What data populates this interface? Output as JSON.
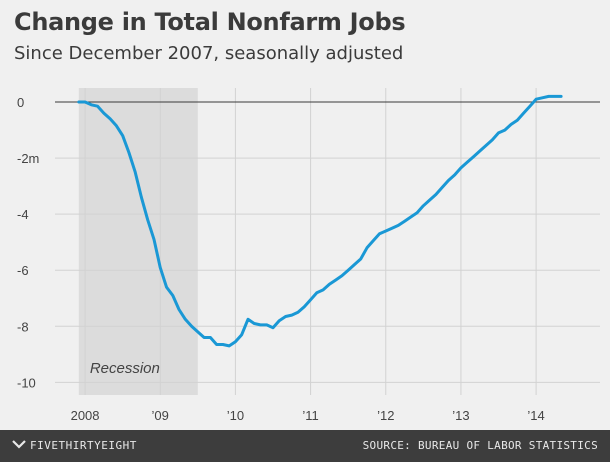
{
  "title": "Change in Total Nonfarm Jobs",
  "subtitle": "Since December 2007, seasonally adjusted",
  "footer": {
    "brand": "FIVETHIRTYEIGHT",
    "source": "SOURCE: BUREAU OF LABOR STATISTICS",
    "text_color": "#e8e8e8",
    "background": "#3d3d3d"
  },
  "chart_data": {
    "type": "line",
    "title": "Change in Total Nonfarm Jobs",
    "subtitle": "Since December 2007, seasonally adjusted",
    "xlabel": "",
    "ylabel": "",
    "x_ticks": [
      {
        "value": 2008,
        "label": "2008"
      },
      {
        "value": 2009,
        "label": "’09"
      },
      {
        "value": 2010,
        "label": "’10"
      },
      {
        "value": 2011,
        "label": "’11"
      },
      {
        "value": 2012,
        "label": "’12"
      },
      {
        "value": 2013,
        "label": "’13"
      },
      {
        "value": 2014,
        "label": "’14"
      }
    ],
    "y_ticks": [
      {
        "value": 0,
        "label": "0"
      },
      {
        "value": -2,
        "label": "-2m"
      },
      {
        "value": -4,
        "label": "-4"
      },
      {
        "value": -6,
        "label": "-6"
      },
      {
        "value": -8,
        "label": "-8"
      },
      {
        "value": -10,
        "label": "-10"
      }
    ],
    "xlim": [
      2007.6,
      2014.85
    ],
    "ylim": [
      -10.45,
      0.5
    ],
    "grid": true,
    "line_color": "#1a98d5",
    "shaded_region": {
      "label": "Recession",
      "x_start": 2007.917,
      "x_end": 2009.5,
      "color": "#dcdcdc"
    },
    "series": [
      {
        "name": "",
        "x": [
          2007.917,
          2008.0,
          2008.083,
          2008.167,
          2008.25,
          2008.333,
          2008.417,
          2008.5,
          2008.583,
          2008.667,
          2008.75,
          2008.833,
          2008.917,
          2009.0,
          2009.083,
          2009.167,
          2009.25,
          2009.333,
          2009.417,
          2009.5,
          2009.583,
          2009.667,
          2009.75,
          2009.833,
          2009.917,
          2010.0,
          2010.083,
          2010.167,
          2010.25,
          2010.333,
          2010.417,
          2010.5,
          2010.583,
          2010.667,
          2010.75,
          2010.833,
          2010.917,
          2011.0,
          2011.083,
          2011.167,
          2011.25,
          2011.333,
          2011.417,
          2011.5,
          2011.583,
          2011.667,
          2011.75,
          2011.833,
          2011.917,
          2012.0,
          2012.083,
          2012.167,
          2012.25,
          2012.333,
          2012.417,
          2012.5,
          2012.583,
          2012.667,
          2012.75,
          2012.833,
          2012.917,
          2013.0,
          2013.083,
          2013.167,
          2013.25,
          2013.333,
          2013.417,
          2013.5,
          2013.583,
          2013.667,
          2013.75,
          2013.833,
          2013.917,
          2014.0,
          2014.083,
          2014.167,
          2014.25,
          2014.333
        ],
        "values": [
          0.0,
          0.0,
          -0.1,
          -0.15,
          -0.4,
          -0.6,
          -0.85,
          -1.2,
          -1.8,
          -2.5,
          -3.4,
          -4.2,
          -4.9,
          -5.9,
          -6.6,
          -6.9,
          -7.4,
          -7.75,
          -8.0,
          -8.2,
          -8.4,
          -8.4,
          -8.65,
          -8.65,
          -8.7,
          -8.55,
          -8.3,
          -7.75,
          -7.9,
          -7.95,
          -7.95,
          -8.05,
          -7.8,
          -7.65,
          -7.6,
          -7.5,
          -7.3,
          -7.05,
          -6.8,
          -6.7,
          -6.5,
          -6.35,
          -6.2,
          -6.0,
          -5.8,
          -5.6,
          -5.2,
          -4.95,
          -4.7,
          -4.6,
          -4.5,
          -4.4,
          -4.25,
          -4.1,
          -3.95,
          -3.7,
          -3.5,
          -3.3,
          -3.05,
          -2.8,
          -2.6,
          -2.35,
          -2.15,
          -1.95,
          -1.75,
          -1.55,
          -1.35,
          -1.1,
          -1.0,
          -0.8,
          -0.65,
          -0.4,
          -0.15,
          0.1,
          0.15,
          0.2,
          0.2,
          0.2
        ]
      }
    ]
  }
}
